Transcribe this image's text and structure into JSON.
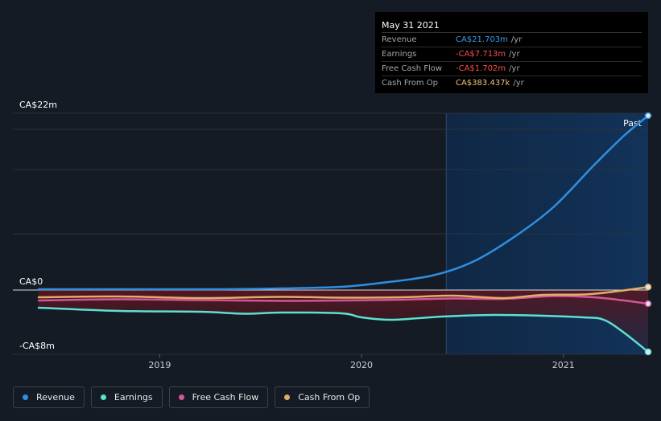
{
  "tooltip": {
    "date": "May 31 2021",
    "rows": [
      {
        "label": "Revenue",
        "value": "CA$21.703m",
        "unit": "/yr",
        "color": "#3b9be8"
      },
      {
        "label": "Earnings",
        "value": "-CA$7.713m",
        "unit": "/yr",
        "color": "#ff4d4d"
      },
      {
        "label": "Free Cash Flow",
        "value": "-CA$1.702m",
        "unit": "/yr",
        "color": "#ff4d4d"
      },
      {
        "label": "Cash From Op",
        "value": "CA$383.437k",
        "unit": "/yr",
        "color": "#f3c07a"
      }
    ]
  },
  "legend": [
    {
      "label": "Revenue",
      "color": "#2f8fe0"
    },
    {
      "label": "Earnings",
      "color": "#5ee0d0"
    },
    {
      "label": "Free Cash Flow",
      "color": "#d0569a"
    },
    {
      "label": "Cash From Op",
      "color": "#e2ad67"
    }
  ],
  "chart_data": {
    "type": "line",
    "title": "",
    "xlabel": "",
    "ylabel": "",
    "ylim": [
      -8,
      22
    ],
    "xlim": [
      2018.4,
      2021.42
    ],
    "y_labels": [
      {
        "value": 22,
        "text": "CA$22m"
      },
      {
        "value": 0,
        "text": "CA$0"
      },
      {
        "value": -8,
        "text": "-CA$8m"
      }
    ],
    "x_ticks": [
      {
        "value": 2019,
        "text": "2019"
      },
      {
        "value": 2020,
        "text": "2020"
      },
      {
        "value": 2021,
        "text": "2021"
      }
    ],
    "past_start": 2020.42,
    "past_label": "Past",
    "series": [
      {
        "name": "Revenue",
        "color": "#2f8fe0",
        "points": [
          [
            2018.4,
            0.1
          ],
          [
            2018.9,
            0.1
          ],
          [
            2019.3,
            0.1
          ],
          [
            2019.6,
            0.2
          ],
          [
            2019.9,
            0.4
          ],
          [
            2020.1,
            0.9
          ],
          [
            2020.35,
            1.8
          ],
          [
            2020.55,
            3.5
          ],
          [
            2020.75,
            6.5
          ],
          [
            2020.95,
            10.3
          ],
          [
            2021.15,
            15.5
          ],
          [
            2021.3,
            19.2
          ],
          [
            2021.42,
            21.7
          ]
        ]
      },
      {
        "name": "Earnings",
        "color": "#5ee0d0",
        "points": [
          [
            2018.4,
            -2.2
          ],
          [
            2018.8,
            -2.6
          ],
          [
            2019.2,
            -2.7
          ],
          [
            2019.42,
            -2.95
          ],
          [
            2019.6,
            -2.8
          ],
          [
            2019.9,
            -2.9
          ],
          [
            2020.0,
            -3.4
          ],
          [
            2020.15,
            -3.7
          ],
          [
            2020.4,
            -3.3
          ],
          [
            2020.65,
            -3.1
          ],
          [
            2020.9,
            -3.2
          ],
          [
            2021.1,
            -3.4
          ],
          [
            2021.2,
            -3.7
          ],
          [
            2021.3,
            -5.3
          ],
          [
            2021.42,
            -7.7
          ]
        ]
      },
      {
        "name": "Free Cash Flow",
        "color": "#d0569a",
        "points": [
          [
            2018.4,
            -1.3
          ],
          [
            2018.8,
            -1.15
          ],
          [
            2019.2,
            -1.25
          ],
          [
            2019.6,
            -1.35
          ],
          [
            2019.9,
            -1.3
          ],
          [
            2020.2,
            -1.2
          ],
          [
            2020.45,
            -1.05
          ],
          [
            2020.7,
            -1.1
          ],
          [
            2020.95,
            -0.75
          ],
          [
            2021.15,
            -0.9
          ],
          [
            2021.3,
            -1.3
          ],
          [
            2021.42,
            -1.7
          ]
        ]
      },
      {
        "name": "Cash From Op",
        "color": "#e2ad67",
        "points": [
          [
            2018.4,
            -0.9
          ],
          [
            2018.8,
            -0.8
          ],
          [
            2019.2,
            -1.0
          ],
          [
            2019.6,
            -0.85
          ],
          [
            2019.9,
            -0.95
          ],
          [
            2020.2,
            -0.9
          ],
          [
            2020.45,
            -0.7
          ],
          [
            2020.7,
            -1.0
          ],
          [
            2020.9,
            -0.6
          ],
          [
            2021.1,
            -0.55
          ],
          [
            2021.25,
            -0.2
          ],
          [
            2021.42,
            0.38
          ]
        ]
      }
    ]
  }
}
